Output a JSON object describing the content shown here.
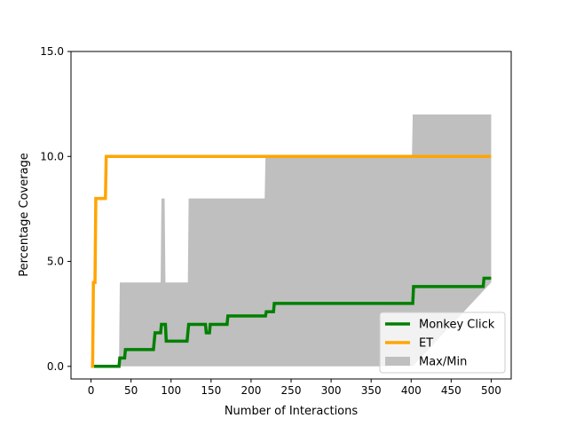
{
  "chart_data": {
    "type": "line",
    "title": "",
    "xlabel": "Number of Interactions",
    "ylabel": "Percentage Coverage",
    "xlim": [
      -25,
      525
    ],
    "ylim": [
      -0.6,
      15.0
    ],
    "xticks": [
      0,
      50,
      100,
      150,
      200,
      250,
      300,
      350,
      400,
      450,
      500
    ],
    "xtick_labels": [
      "0",
      "50",
      "100",
      "150",
      "200",
      "250",
      "300",
      "350",
      "400",
      "450",
      "500"
    ],
    "yticks": [
      0.0,
      5.0,
      10.0,
      15.0
    ],
    "ytick_labels": [
      "0.0",
      "5.0",
      "10.0",
      "15.0"
    ],
    "grid": false,
    "legend_position": "lower-right",
    "series": [
      {
        "name": "Monkey Click",
        "kind": "line",
        "color": "#008000",
        "step": true,
        "points": [
          [
            0,
            0
          ],
          [
            35,
            0
          ],
          [
            36,
            0.4
          ],
          [
            42,
            0.4
          ],
          [
            43,
            0.8
          ],
          [
            78,
            0.8
          ],
          [
            79,
            1.2
          ],
          [
            80,
            1.6
          ],
          [
            87,
            1.6
          ],
          [
            88,
            2.0
          ],
          [
            93,
            2.0
          ],
          [
            94,
            1.2
          ],
          [
            120,
            1.2
          ],
          [
            122,
            2.0
          ],
          [
            143,
            2.0
          ],
          [
            144,
            1.6
          ],
          [
            148,
            1.6
          ],
          [
            149,
            2.0
          ],
          [
            170,
            2.0
          ],
          [
            171,
            2.4
          ],
          [
            218,
            2.4
          ],
          [
            219,
            2.6
          ],
          [
            228,
            2.6
          ],
          [
            229,
            3.0
          ],
          [
            402,
            3.0
          ],
          [
            403,
            3.8
          ],
          [
            490,
            3.8
          ],
          [
            491,
            4.2
          ],
          [
            500,
            4.2
          ]
        ]
      },
      {
        "name": "ET",
        "kind": "line",
        "color": "#ffa500",
        "step": true,
        "points": [
          [
            0,
            0
          ],
          [
            2,
            0
          ],
          [
            3,
            4.0
          ],
          [
            5,
            4.0
          ],
          [
            6,
            8.0
          ],
          [
            18,
            8.0
          ],
          [
            19,
            10.0
          ],
          [
            500,
            10.0
          ]
        ]
      },
      {
        "name": "Max/Min",
        "kind": "band",
        "color": "#bfbfbf",
        "x": [
          0,
          35,
          36,
          87,
          88,
          92,
          93,
          121,
          122,
          217,
          218,
          401,
          402,
          500
        ],
        "upper": [
          0,
          0,
          4.0,
          4.0,
          8.0,
          8.0,
          4.0,
          4.0,
          8.0,
          8.0,
          10.0,
          10.0,
          12.0,
          12.0
        ],
        "lower": [
          0,
          0,
          0,
          0,
          0,
          0,
          0,
          0,
          0,
          0,
          0,
          0,
          0,
          4.0
        ]
      }
    ]
  }
}
